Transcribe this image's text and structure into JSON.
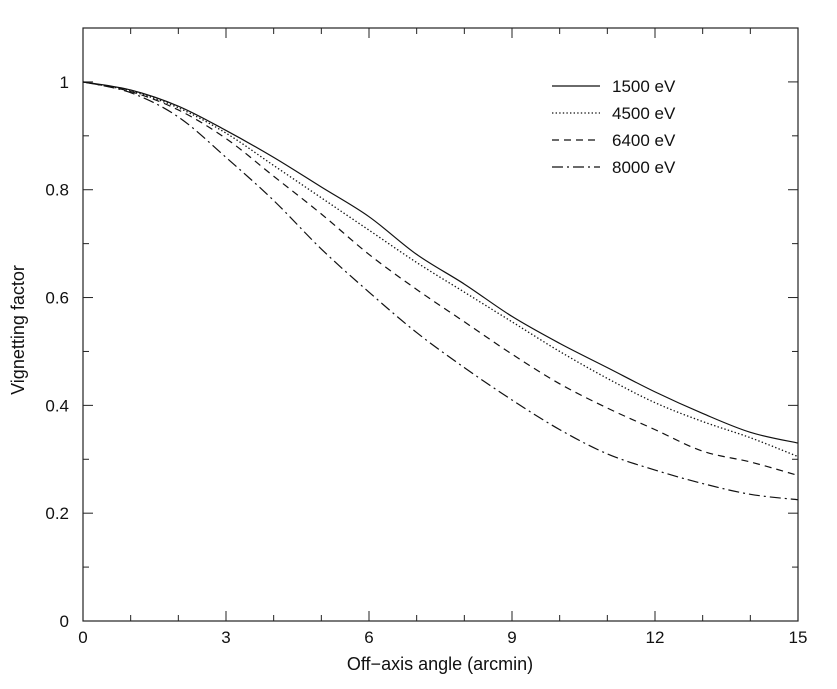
{
  "chart_data": {
    "type": "line",
    "title": "",
    "xlabel": "Off−axis angle (arcmin)",
    "ylabel": "Vignetting factor",
    "xlim": [
      0,
      15
    ],
    "ylim": [
      0,
      1.1
    ],
    "x_ticks": [
      "0",
      "3",
      "6",
      "9",
      "12",
      "15"
    ],
    "y_ticks": [
      "0",
      "0.2",
      "0.4",
      "0.6",
      "0.8",
      "1"
    ],
    "x_tick_values": [
      0,
      3,
      6,
      9,
      12,
      15
    ],
    "y_tick_values": [
      0,
      0.2,
      0.4,
      0.6,
      0.8,
      1.0
    ],
    "grid": false,
    "legend_position": "top-right",
    "x": [
      0,
      1,
      2,
      3,
      4,
      5,
      6,
      7,
      8,
      9,
      10,
      11,
      12,
      13,
      14,
      15
    ],
    "series": [
      {
        "name": "1500 eV",
        "style": "solid",
        "values": [
          1.0,
          0.985,
          0.955,
          0.91,
          0.86,
          0.805,
          0.75,
          0.68,
          0.625,
          0.565,
          0.515,
          0.47,
          0.425,
          0.385,
          0.35,
          0.33
        ]
      },
      {
        "name": "4500 eV",
        "style": "dotted",
        "values": [
          1.0,
          0.983,
          0.952,
          0.905,
          0.845,
          0.785,
          0.725,
          0.665,
          0.61,
          0.555,
          0.5,
          0.45,
          0.405,
          0.37,
          0.34,
          0.305
        ]
      },
      {
        "name": "6400 eV",
        "style": "dashed",
        "values": [
          1.0,
          0.982,
          0.948,
          0.895,
          0.825,
          0.755,
          0.68,
          0.615,
          0.555,
          0.495,
          0.44,
          0.395,
          0.355,
          0.315,
          0.295,
          0.27
        ]
      },
      {
        "name": "8000 eV",
        "style": "dashdot",
        "values": [
          1.0,
          0.98,
          0.935,
          0.86,
          0.78,
          0.69,
          0.61,
          0.535,
          0.47,
          0.41,
          0.355,
          0.31,
          0.28,
          0.255,
          0.235,
          0.225
        ]
      }
    ]
  }
}
